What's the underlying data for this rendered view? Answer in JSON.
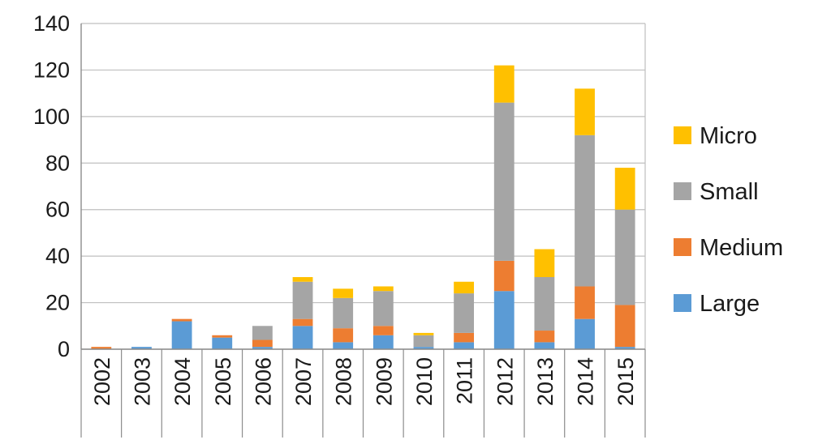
{
  "chart_data": {
    "type": "bar",
    "stacked": true,
    "categories": [
      "2002",
      "2003",
      "2004",
      "2005",
      "2006",
      "2007",
      "2008",
      "2009",
      "2010",
      "2011",
      "2012",
      "2013",
      "2014",
      "2015"
    ],
    "series": [
      {
        "name": "Large",
        "color": "#5b9bd5",
        "values": [
          0,
          1,
          12,
          5,
          1,
          10,
          3,
          6,
          1,
          3,
          25,
          3,
          13,
          1
        ]
      },
      {
        "name": "Medium",
        "color": "#ed7d31",
        "values": [
          1,
          0,
          1,
          1,
          3,
          3,
          6,
          4,
          0,
          4,
          13,
          5,
          14,
          18
        ]
      },
      {
        "name": "Small",
        "color": "#a5a5a5",
        "values": [
          0,
          0,
          0,
          0,
          6,
          16,
          13,
          15,
          5,
          17,
          68,
          23,
          65,
          41
        ]
      },
      {
        "name": "Micro",
        "color": "#ffc000",
        "values": [
          0,
          0,
          0,
          0,
          0,
          2,
          4,
          2,
          1,
          5,
          16,
          12,
          20,
          18
        ]
      }
    ],
    "legend_order": [
      "Micro",
      "Small",
      "Medium",
      "Large"
    ],
    "legend_position": "right",
    "ylim": [
      0,
      140
    ],
    "yticks": [
      "0",
      "20",
      "40",
      "60",
      "80",
      "100",
      "120",
      "140"
    ],
    "grid": true,
    "title": "",
    "xlabel": "",
    "ylabel": ""
  }
}
